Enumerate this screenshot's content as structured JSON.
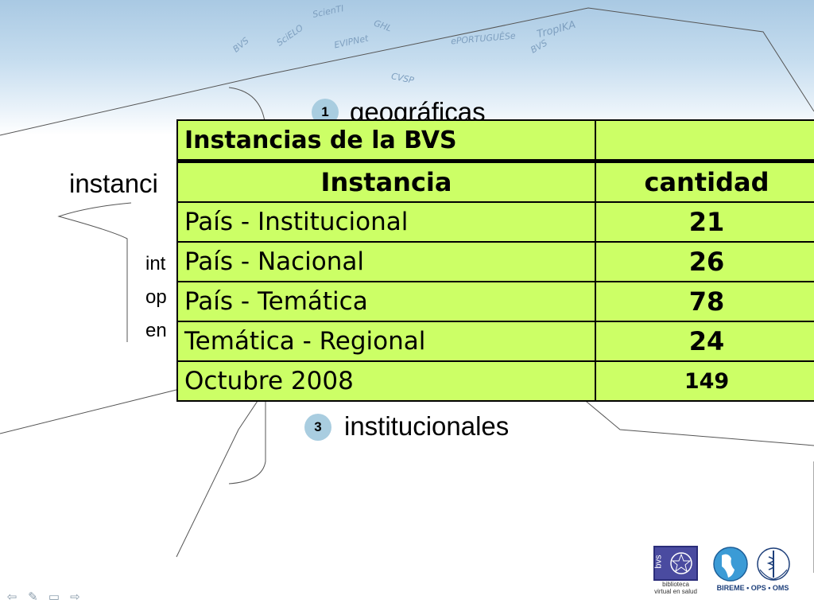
{
  "banner": {
    "labels": [
      "ScienTI",
      "GHL",
      "TropIKA",
      "BVS",
      "SciELO",
      "EVIPNet",
      "ePORTUGUÊSe",
      "BVS",
      "CVSP"
    ]
  },
  "slide": {
    "text_instanci": "instanci",
    "text_int": "int",
    "text_op": "op",
    "text_en": "en",
    "step1": {
      "number": "1",
      "label": "geográficas"
    },
    "step3": {
      "number": "3",
      "label": "institucionales"
    }
  },
  "table": {
    "title": "Instancias de la BVS",
    "title_right": "",
    "header": {
      "name": "Instancia",
      "count": "cantidad"
    },
    "rows": [
      {
        "name": "País - Institucional",
        "count": "21"
      },
      {
        "name": "País - Nacional",
        "count": "26"
      },
      {
        "name": "País - Temática",
        "count": "78"
      },
      {
        "name": "Temática - Regional",
        "count": "24"
      }
    ],
    "total": {
      "name": "Octubre 2008",
      "count": "149"
    }
  },
  "logos": {
    "bvs_vertical": "bvs",
    "bvs_caption_1": "biblioteca",
    "bvs_caption_2": "virtual en salud",
    "bireme_caption": "BIREME • OPS • OMS"
  },
  "nav": {
    "prev": "⇦",
    "edit": "✎",
    "menu": "▭",
    "next": "⇨"
  },
  "colors": {
    "table_fill": "#ccff66",
    "badge": "#a9cde0",
    "banner": "#a9c9e3"
  }
}
